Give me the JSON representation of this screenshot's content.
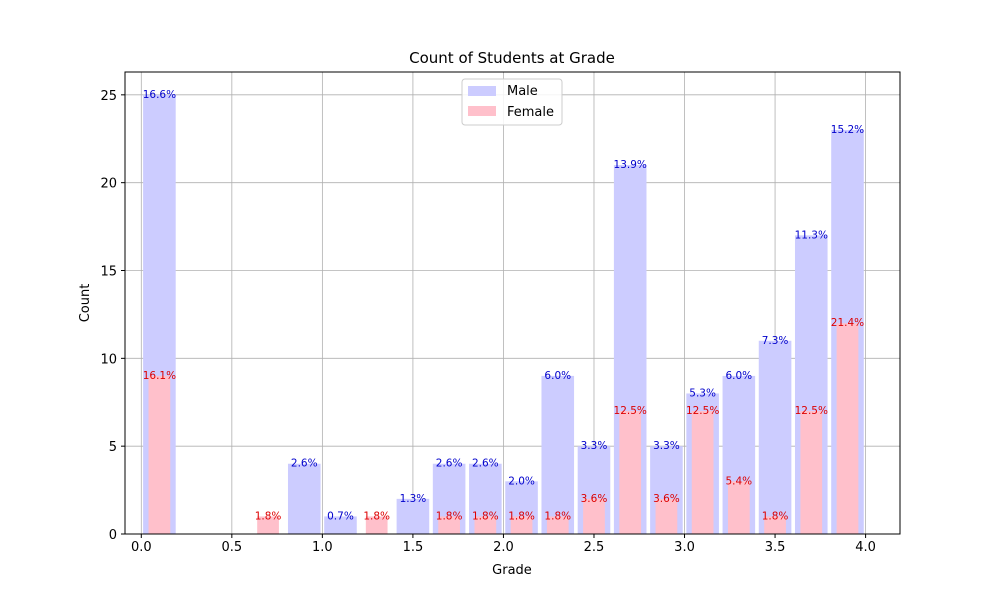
{
  "chart_data": {
    "type": "bar",
    "title": "Count of Students at Grade",
    "xlabel": "Grade",
    "ylabel": "Count",
    "xlim": [
      -0.09,
      4.19
    ],
    "ylim": [
      0,
      26.3
    ],
    "xticks": [
      "0.0",
      "0.5",
      "1.0",
      "1.5",
      "2.0",
      "2.5",
      "3.0",
      "3.5",
      "4.0"
    ],
    "yticks": [
      "0",
      "5",
      "10",
      "15",
      "20",
      "25"
    ],
    "grid": true,
    "legend_position": "top-center",
    "series": [
      {
        "name": "Male",
        "color": "#ccccff",
        "label_color": "#0000cc",
        "bar_width": 0.18,
        "bars": [
          {
            "x": 0.1,
            "value": 25,
            "label": "16.6%"
          },
          {
            "x": 0.9,
            "value": 4,
            "label": "2.6%"
          },
          {
            "x": 1.1,
            "value": 1,
            "label": "0.7%"
          },
          {
            "x": 1.5,
            "value": 2,
            "label": "1.3%"
          },
          {
            "x": 1.7,
            "value": 4,
            "label": "2.6%"
          },
          {
            "x": 1.9,
            "value": 4,
            "label": "2.6%"
          },
          {
            "x": 2.1,
            "value": 3,
            "label": "2.0%"
          },
          {
            "x": 2.3,
            "value": 9,
            "label": "6.0%"
          },
          {
            "x": 2.5,
            "value": 5,
            "label": "3.3%"
          },
          {
            "x": 2.7,
            "value": 21,
            "label": "13.9%"
          },
          {
            "x": 2.9,
            "value": 5,
            "label": "3.3%"
          },
          {
            "x": 3.1,
            "value": 8,
            "label": "5.3%"
          },
          {
            "x": 3.3,
            "value": 9,
            "label": "6.0%"
          },
          {
            "x": 3.5,
            "value": 11,
            "label": "7.3%"
          },
          {
            "x": 3.7,
            "value": 17,
            "label": "11.3%"
          },
          {
            "x": 3.9,
            "value": 23,
            "label": "15.2%"
          }
        ]
      },
      {
        "name": "Female",
        "color": "#ffc0cb",
        "label_color": "#dd0000",
        "bar_width": 0.12,
        "bars": [
          {
            "x": 0.1,
            "value": 9,
            "label": "16.1%"
          },
          {
            "x": 0.7,
            "value": 1,
            "label": "1.8%"
          },
          {
            "x": 1.3,
            "value": 1,
            "label": "1.8%"
          },
          {
            "x": 1.7,
            "value": 1,
            "label": "1.8%"
          },
          {
            "x": 1.9,
            "value": 1,
            "label": "1.8%"
          },
          {
            "x": 2.1,
            "value": 1,
            "label": "1.8%"
          },
          {
            "x": 2.3,
            "value": 1,
            "label": "1.8%"
          },
          {
            "x": 2.5,
            "value": 2,
            "label": "3.6%"
          },
          {
            "x": 2.7,
            "value": 7,
            "label": "12.5%"
          },
          {
            "x": 2.9,
            "value": 2,
            "label": "3.6%"
          },
          {
            "x": 3.1,
            "value": 7,
            "label": "12.5%"
          },
          {
            "x": 3.3,
            "value": 3,
            "label": "5.4%"
          },
          {
            "x": 3.5,
            "value": 1,
            "label": "1.8%"
          },
          {
            "x": 3.7,
            "value": 7,
            "label": "12.5%"
          },
          {
            "x": 3.9,
            "value": 12,
            "label": "21.4%"
          }
        ]
      }
    ]
  }
}
